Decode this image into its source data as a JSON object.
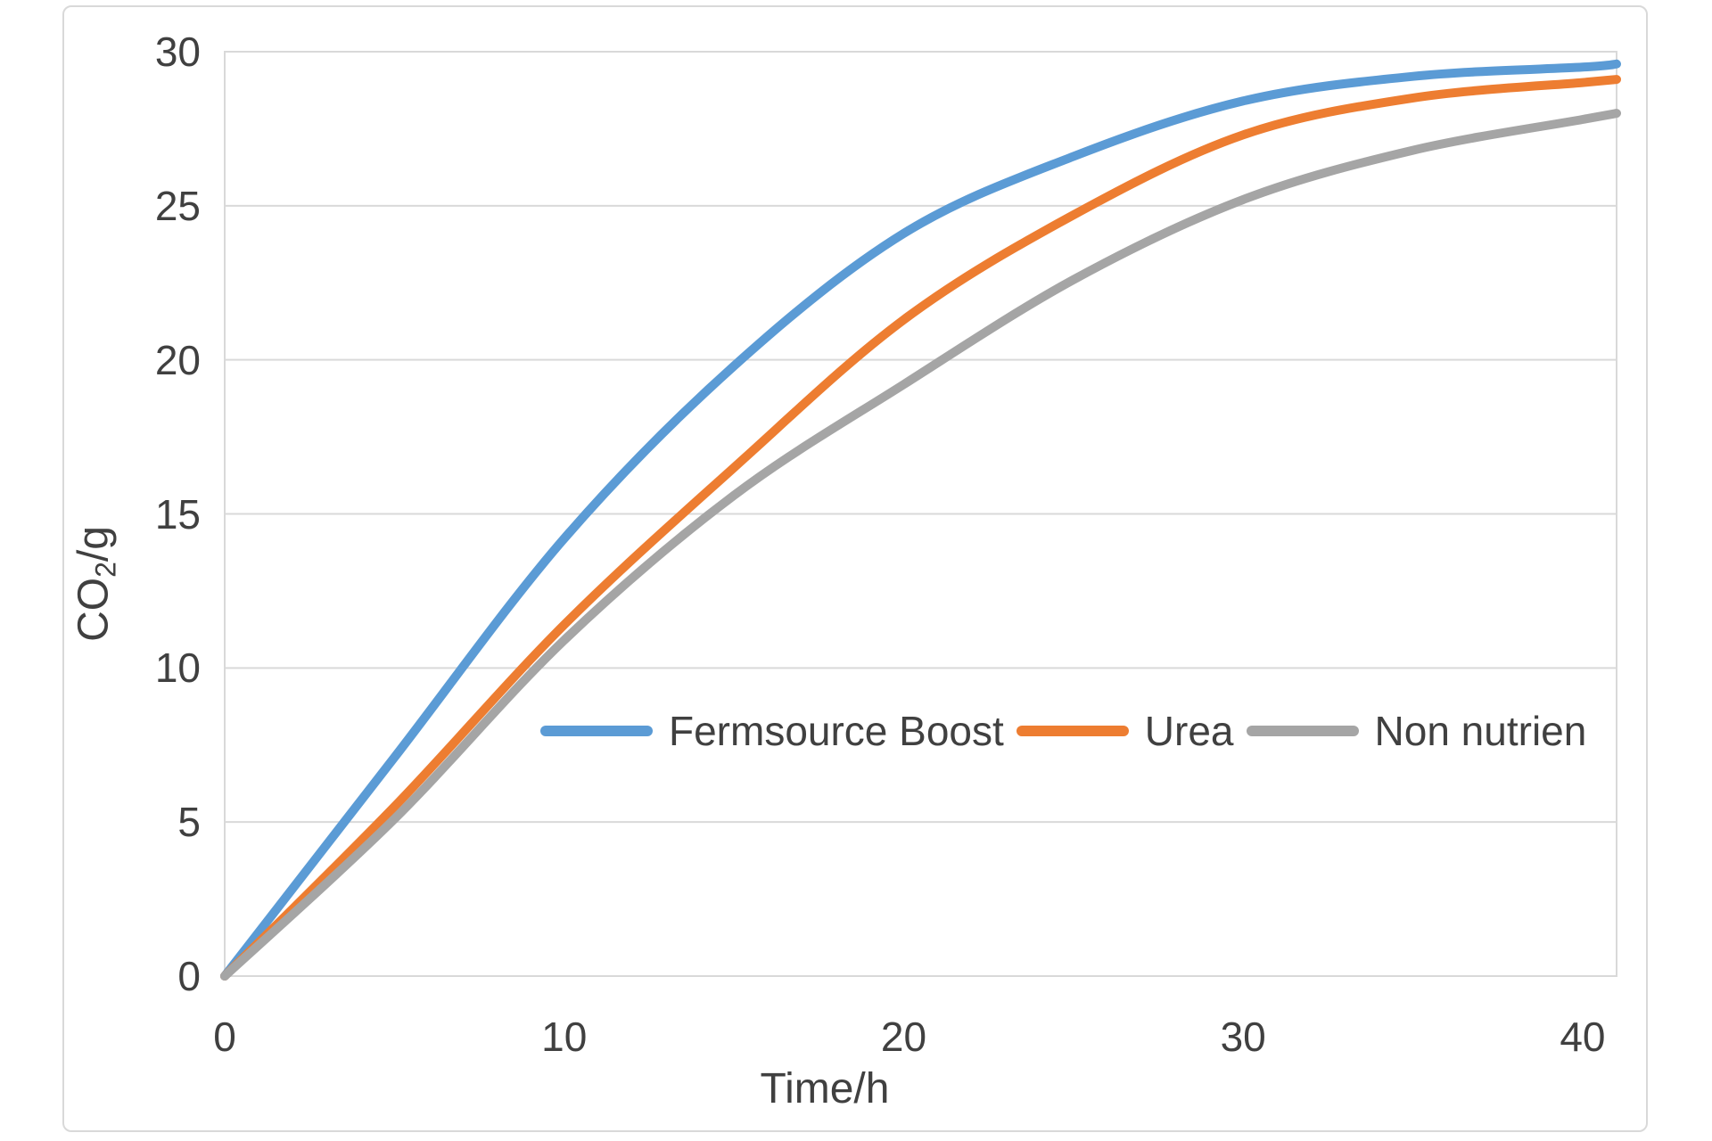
{
  "chart_data": {
    "type": "line",
    "title": "",
    "xlabel": "Time/h",
    "ylabel": "CO2/g",
    "ylabel_parts": {
      "base": "CO",
      "sub": "2",
      "rest": "/g"
    },
    "x": [
      0,
      5,
      10,
      15,
      20,
      25,
      30,
      35,
      40,
      41
    ],
    "series": [
      {
        "name": "Fermsource Boost",
        "color": "#5B9BD5",
        "values": [
          0,
          7.1,
          14.2,
          19.8,
          24.1,
          26.6,
          28.4,
          29.2,
          29.5,
          29.6
        ]
      },
      {
        "name": "Urea",
        "color": "#ED7D31",
        "values": [
          0,
          5.5,
          11.4,
          16.5,
          21.3,
          24.7,
          27.3,
          28.5,
          29.0,
          29.1
        ]
      },
      {
        "name": "Non nutrien",
        "color": "#A5A5A5",
        "values": [
          0,
          5.1,
          10.9,
          15.6,
          19.2,
          22.6,
          25.2,
          26.8,
          27.8,
          28.0
        ]
      }
    ],
    "x_ticks": [
      0,
      10,
      20,
      30,
      40
    ],
    "y_ticks": [
      0,
      5,
      10,
      15,
      20,
      25,
      30
    ],
    "xlim": [
      0,
      41
    ],
    "ylim": [
      0,
      30
    ],
    "grid": "horizontal",
    "legend_position": "inside-center",
    "colors": {
      "gridline": "#D9D9D9",
      "frame_border": "#D9D9D9",
      "text": "#404040"
    }
  }
}
